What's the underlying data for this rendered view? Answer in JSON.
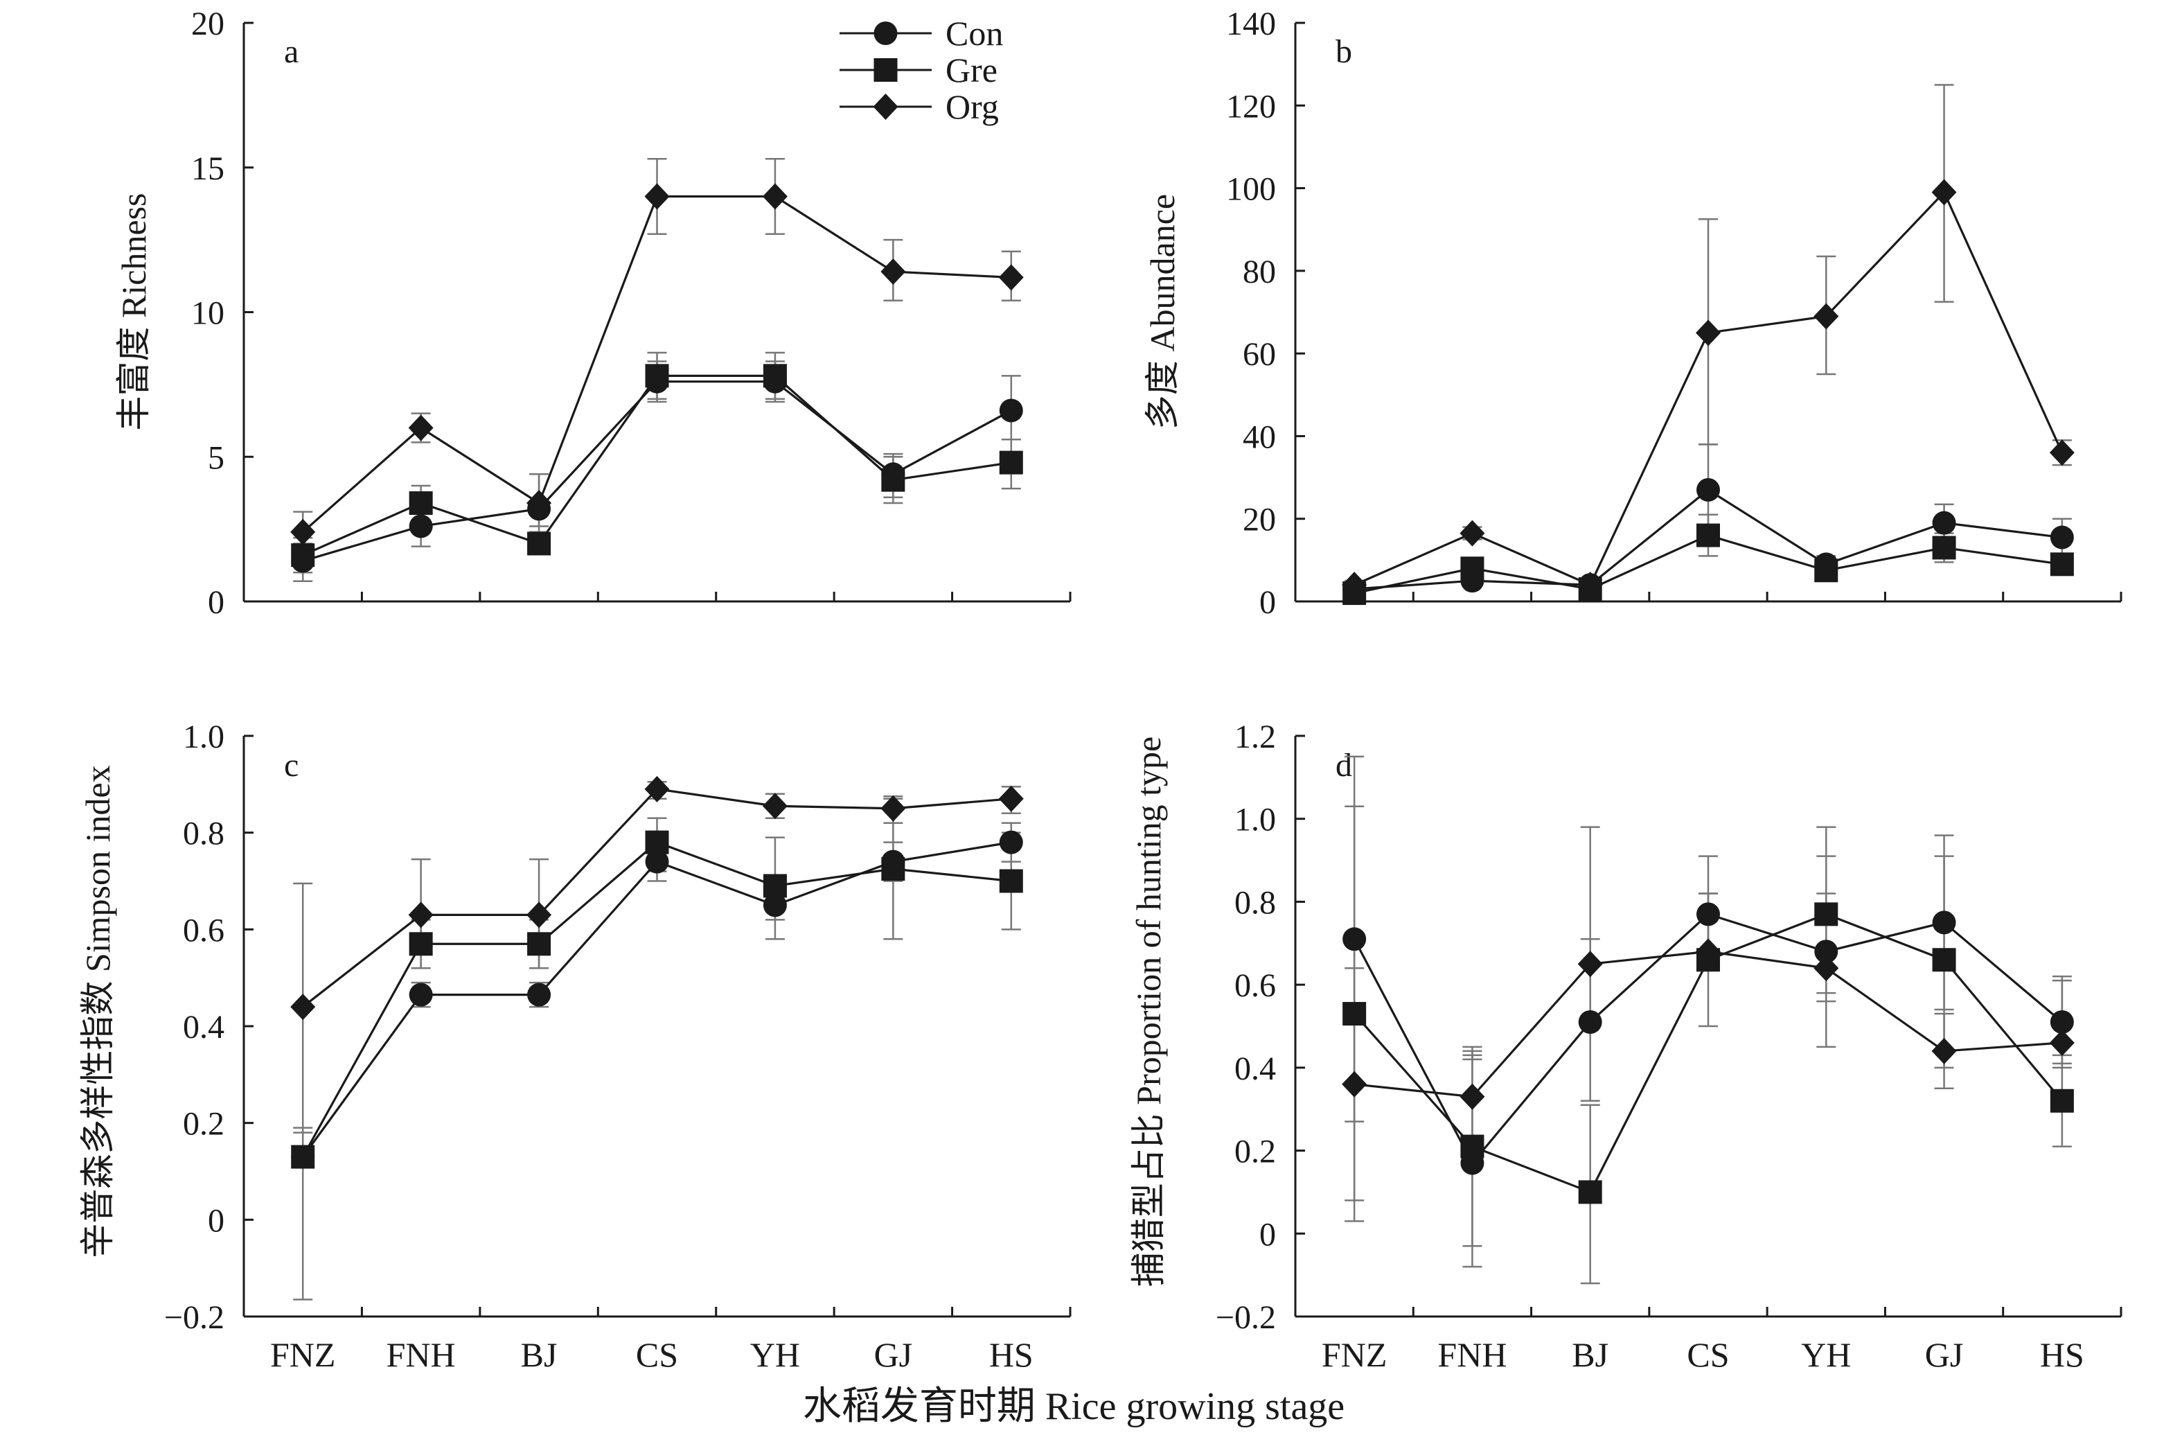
{
  "figure": {
    "xlabel": "水稻发育时期 Rice growing stage"
  },
  "chart_data": [
    {
      "type": "line",
      "panel": "a",
      "ylabel": "丰富度 Richness",
      "categories": [
        "FNZ",
        "FNH",
        "BJ",
        "CS",
        "YH",
        "GJ",
        "HS"
      ],
      "show_xticklabels": false,
      "ylim": [
        0,
        20
      ],
      "yticks": [
        0,
        5,
        10,
        15,
        20
      ],
      "yticklabels": [
        "0",
        "5",
        "10",
        "15",
        "20"
      ],
      "legend": {
        "position": "top-right",
        "show": true
      },
      "series": [
        {
          "name": "Con",
          "marker": "circle",
          "values": [
            1.4,
            2.6,
            3.2,
            7.6,
            7.6,
            4.4,
            6.6
          ],
          "err_low": [
            0.7,
            1.9,
            2.6,
            6.9,
            6.9,
            3.6,
            5.6
          ],
          "err_high": [
            2.0,
            3.3,
            4.4,
            8.3,
            8.3,
            5.1,
            7.8
          ]
        },
        {
          "name": "Gre",
          "marker": "square",
          "values": [
            1.6,
            3.4,
            2.0,
            7.8,
            7.8,
            4.2,
            4.8
          ],
          "err_low": [
            1.0,
            2.8,
            2.0,
            7.0,
            7.0,
            3.4,
            3.9
          ],
          "err_high": [
            2.2,
            4.0,
            2.2,
            8.6,
            8.6,
            5.0,
            5.6
          ]
        },
        {
          "name": "Org",
          "marker": "diamond",
          "values": [
            2.4,
            6.0,
            3.4,
            14.0,
            14.0,
            11.4,
            11.2
          ],
          "err_low": [
            1.7,
            5.5,
            2.4,
            12.7,
            12.7,
            10.4,
            10.4
          ],
          "err_high": [
            3.1,
            6.5,
            4.4,
            15.3,
            15.3,
            12.5,
            12.1
          ]
        }
      ]
    },
    {
      "type": "line",
      "panel": "b",
      "ylabel": "多度 Abundance",
      "categories": [
        "FNZ",
        "FNH",
        "BJ",
        "CS",
        "YH",
        "GJ",
        "HS"
      ],
      "show_xticklabels": false,
      "ylim": [
        0,
        140
      ],
      "yticks": [
        0,
        20,
        40,
        60,
        80,
        100,
        120,
        140
      ],
      "yticklabels": [
        "0",
        "20",
        "40",
        "60",
        "80",
        "100",
        "120",
        "140"
      ],
      "series": [
        {
          "name": "Con",
          "marker": "circle",
          "values": [
            3,
            5,
            4,
            27,
            9,
            19,
            15.5
          ],
          "err_low": [
            2,
            4,
            3,
            16,
            7,
            15,
            11
          ],
          "err_high": [
            4,
            6,
            5,
            38,
            11,
            23.5,
            20
          ]
        },
        {
          "name": "Gre",
          "marker": "square",
          "values": [
            2,
            8,
            3,
            16,
            7.5,
            13,
            9
          ],
          "err_low": [
            1,
            7,
            2,
            11,
            6,
            9.5,
            7.5
          ],
          "err_high": [
            3,
            9,
            4,
            21,
            9,
            16.5,
            10.5
          ]
        },
        {
          "name": "Org",
          "marker": "diamond",
          "values": [
            4,
            16.5,
            4,
            65,
            69,
            99,
            36
          ],
          "err_low": [
            3,
            15,
            3,
            38,
            55,
            72.5,
            33
          ],
          "err_high": [
            5,
            18,
            5,
            92.5,
            83.5,
            125,
            39
          ]
        }
      ]
    },
    {
      "type": "line",
      "panel": "c",
      "ylabel": "辛普森多样性指数 Simpson index",
      "categories": [
        "FNZ",
        "FNH",
        "BJ",
        "CS",
        "YH",
        "GJ",
        "HS"
      ],
      "show_xticklabels": true,
      "ylim": [
        -0.2,
        1.0
      ],
      "yticks": [
        -0.2,
        0,
        0.2,
        0.4,
        0.6,
        0.8,
        1.0
      ],
      "yticklabels": [
        "−0.2",
        "0",
        "0.2",
        "0.4",
        "0.6",
        "0.8",
        "1.0"
      ],
      "series": [
        {
          "name": "Con",
          "marker": "circle",
          "values": [
            0.13,
            0.465,
            0.465,
            0.74,
            0.65,
            0.74,
            0.78
          ],
          "err_low": [
            0.13,
            0.44,
            0.44,
            0.7,
            0.58,
            0.7,
            0.74
          ],
          "err_high": [
            0.13,
            0.49,
            0.49,
            0.78,
            0.71,
            0.78,
            0.82
          ]
        },
        {
          "name": "Gre",
          "marker": "square",
          "values": [
            0.13,
            0.57,
            0.57,
            0.78,
            0.69,
            0.725,
            0.7
          ],
          "err_low": [
            -0.165,
            0.52,
            0.52,
            0.72,
            0.62,
            0.58,
            0.6
          ],
          "err_high": [
            0.19,
            0.62,
            0.62,
            0.83,
            0.79,
            0.87,
            0.8
          ]
        },
        {
          "name": "Org",
          "marker": "diamond",
          "values": [
            0.44,
            0.63,
            0.63,
            0.89,
            0.855,
            0.85,
            0.87
          ],
          "err_low": [
            0.18,
            0.52,
            0.52,
            0.87,
            0.83,
            0.82,
            0.84
          ],
          "err_high": [
            0.695,
            0.745,
            0.745,
            0.905,
            0.88,
            0.875,
            0.895
          ]
        }
      ]
    },
    {
      "type": "line",
      "panel": "d",
      "ylabel": "捕猎型占比 Proportion of hunting type",
      "categories": [
        "FNZ",
        "FNH",
        "BJ",
        "CS",
        "YH",
        "GJ",
        "HS"
      ],
      "show_xticklabels": true,
      "ylim": [
        -0.2,
        1.2
      ],
      "yticks": [
        -0.2,
        0,
        0.2,
        0.4,
        0.6,
        0.8,
        1.0,
        1.2
      ],
      "yticklabels": [
        "−0.2",
        "0",
        "0.2",
        "0.4",
        "0.6",
        "0.8",
        "1.0",
        "1.2"
      ],
      "series": [
        {
          "name": "Con",
          "marker": "circle",
          "values": [
            0.71,
            0.17,
            0.51,
            0.77,
            0.68,
            0.75,
            0.51
          ],
          "err_low": [
            0.27,
            -0.08,
            0.32,
            0.64,
            0.58,
            0.54,
            0.41
          ],
          "err_high": [
            1.15,
            0.43,
            0.71,
            0.91,
            0.91,
            0.96,
            0.61
          ]
        },
        {
          "name": "Gre",
          "marker": "square",
          "values": [
            0.53,
            0.21,
            0.1,
            0.66,
            0.77,
            0.66,
            0.32
          ],
          "err_low": [
            0.08,
            -0.03,
            -0.12,
            0.64,
            0.56,
            0.4,
            0.21
          ],
          "err_high": [
            1.03,
            0.45,
            0.31,
            0.82,
            0.98,
            0.91,
            0.43
          ]
        },
        {
          "name": "Org",
          "marker": "diamond",
          "values": [
            0.36,
            0.33,
            0.65,
            0.68,
            0.64,
            0.44,
            0.46
          ],
          "err_low": [
            0.03,
            0.42,
            0.5,
            0.5,
            0.45,
            0.35,
            0.4
          ],
          "err_high": [
            0.64,
            0.44,
            0.98,
            0.82,
            0.82,
            0.53,
            0.62
          ]
        }
      ]
    }
  ]
}
